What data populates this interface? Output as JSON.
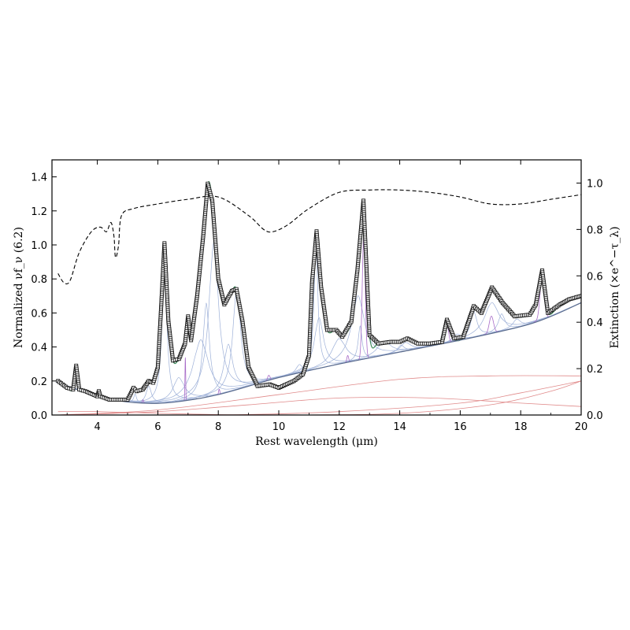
{
  "chart_data": {
    "type": "line",
    "xlabel": "Rest wavelength (μm)",
    "ylabel_left": "Normalized νf_ν (6.2)",
    "ylabel_right": "Extinction (×e^−τ_λ)",
    "xlim": [
      2.5,
      20
    ],
    "ylim_left": [
      0,
      1.5
    ],
    "ylim_right": [
      0,
      1.1
    ],
    "x_ticks": [
      4,
      6,
      8,
      10,
      12,
      14,
      16,
      18,
      20
    ],
    "x_tick_labels": [
      "4",
      "6",
      "8",
      "10",
      "12",
      "14",
      "16",
      "18",
      "20"
    ],
    "y_ticks_left": [
      0.0,
      0.2,
      0.4,
      0.6,
      0.8,
      1.0,
      1.2,
      1.4
    ],
    "y_tick_labels_left": [
      "0.0",
      "0.2",
      "0.4",
      "0.6",
      "0.8",
      "1.0",
      "1.2",
      "1.4"
    ],
    "y_ticks_right": [
      0.0,
      0.2,
      0.4,
      0.6,
      0.8,
      1.0
    ],
    "y_tick_labels_right": [
      "0.0",
      "0.2",
      "0.4",
      "0.6",
      "0.8",
      "1.0"
    ],
    "grid": false,
    "series": [
      {
        "role": "observed spectrum",
        "style": "open-square-markers",
        "color": "#1a1a1a",
        "x": [
          2.7,
          3.0,
          3.2,
          3.3,
          3.4,
          3.6,
          4.0,
          4.05,
          4.1,
          4.4,
          4.7,
          5.0,
          5.2,
          5.3,
          5.5,
          5.7,
          5.85,
          6.0,
          6.1,
          6.22,
          6.35,
          6.5,
          6.7,
          6.9,
          7.0,
          7.1,
          7.3,
          7.5,
          7.65,
          7.8,
          8.0,
          8.2,
          8.45,
          8.6,
          8.8,
          9.0,
          9.3,
          9.7,
          10.0,
          10.5,
          10.8,
          11.0,
          11.1,
          11.25,
          11.4,
          11.6,
          11.9,
          12.1,
          12.4,
          12.6,
          12.8,
          13.0,
          13.3,
          13.7,
          14.0,
          14.25,
          14.6,
          15.0,
          15.4,
          15.56,
          15.8,
          16.1,
          16.45,
          16.7,
          17.05,
          17.4,
          17.8,
          18.3,
          18.5,
          18.71,
          18.9,
          19.3,
          19.6,
          20.0
        ],
        "y": [
          0.2,
          0.16,
          0.15,
          0.29,
          0.15,
          0.14,
          0.11,
          0.14,
          0.11,
          0.09,
          0.09,
          0.09,
          0.16,
          0.14,
          0.15,
          0.2,
          0.19,
          0.28,
          0.6,
          1.01,
          0.55,
          0.32,
          0.33,
          0.42,
          0.58,
          0.44,
          0.7,
          1.05,
          1.36,
          1.26,
          0.8,
          0.65,
          0.73,
          0.74,
          0.55,
          0.28,
          0.17,
          0.18,
          0.16,
          0.2,
          0.24,
          0.35,
          0.78,
          1.08,
          0.75,
          0.5,
          0.5,
          0.46,
          0.55,
          0.85,
          1.26,
          0.47,
          0.42,
          0.43,
          0.43,
          0.45,
          0.42,
          0.42,
          0.43,
          0.56,
          0.45,
          0.46,
          0.64,
          0.6,
          0.75,
          0.66,
          0.58,
          0.59,
          0.65,
          0.85,
          0.6,
          0.65,
          0.68,
          0.7
        ]
      },
      {
        "role": "total model fit",
        "style": "solid-line",
        "color": "#3d8a5a",
        "x": [
          2.7,
          3.0,
          3.2,
          3.3,
          3.4,
          3.6,
          4.0,
          4.05,
          4.1,
          4.4,
          4.7,
          5.0,
          5.2,
          5.3,
          5.5,
          5.7,
          5.85,
          6.0,
          6.1,
          6.22,
          6.35,
          6.5,
          6.7,
          6.9,
          7.0,
          7.1,
          7.3,
          7.5,
          7.65,
          7.8,
          8.0,
          8.2,
          8.45,
          8.6,
          8.8,
          9.0,
          9.3,
          9.7,
          10.0,
          10.5,
          10.8,
          11.0,
          11.1,
          11.25,
          11.4,
          11.6,
          11.9,
          12.1,
          12.4,
          12.6,
          12.8,
          13.0,
          13.3,
          13.7,
          14.0,
          14.25,
          14.6,
          15.0,
          15.4,
          15.56,
          15.8,
          16.1,
          16.45,
          16.7,
          17.05,
          17.4,
          17.8,
          18.3,
          18.5,
          18.71,
          18.9,
          19.3,
          19.6,
          20.0
        ],
        "y": [
          0.2,
          0.16,
          0.15,
          0.29,
          0.15,
          0.14,
          0.11,
          0.14,
          0.11,
          0.09,
          0.09,
          0.09,
          0.16,
          0.14,
          0.15,
          0.2,
          0.19,
          0.28,
          0.6,
          1.01,
          0.55,
          0.32,
          0.33,
          0.42,
          0.58,
          0.44,
          0.7,
          1.05,
          1.36,
          1.26,
          0.8,
          0.65,
          0.73,
          0.74,
          0.55,
          0.28,
          0.17,
          0.18,
          0.16,
          0.2,
          0.24,
          0.35,
          0.78,
          1.08,
          0.75,
          0.5,
          0.5,
          0.46,
          0.55,
          0.85,
          1.26,
          0.47,
          0.42,
          0.43,
          0.43,
          0.45,
          0.42,
          0.42,
          0.43,
          0.56,
          0.45,
          0.46,
          0.64,
          0.6,
          0.75,
          0.66,
          0.58,
          0.59,
          0.65,
          0.85,
          0.6,
          0.65,
          0.68,
          0.7
        ]
      },
      {
        "role": "continuum",
        "style": "solid-line",
        "color": "#5a6b8c",
        "x": [
          2.7,
          3.5,
          4.5,
          5.5,
          6.5,
          8.0,
          10.0,
          12.0,
          14.0,
          16.0,
          18.0,
          19.0,
          20.0
        ],
        "y": [
          0.19,
          0.14,
          0.09,
          0.07,
          0.075,
          0.12,
          0.22,
          0.3,
          0.37,
          0.44,
          0.52,
          0.58,
          0.66
        ]
      },
      {
        "role": "extinction",
        "axis": "right",
        "style": "dashed-line",
        "color": "#000000",
        "x": [
          2.7,
          2.9,
          3.1,
          3.4,
          3.8,
          4.1,
          4.3,
          4.45,
          4.55,
          4.6,
          4.7,
          4.8,
          5.2,
          6.0,
          7.0,
          8.0,
          9.0,
          9.5,
          9.8,
          10.3,
          11.0,
          12.0,
          13.0,
          14.0,
          15.0,
          16.0,
          17.0,
          18.0,
          19.0,
          20.0
        ],
        "y": [
          0.61,
          0.57,
          0.58,
          0.7,
          0.79,
          0.81,
          0.79,
          0.83,
          0.77,
          0.68,
          0.73,
          0.86,
          0.89,
          0.91,
          0.93,
          0.94,
          0.86,
          0.8,
          0.79,
          0.82,
          0.89,
          0.96,
          0.97,
          0.97,
          0.96,
          0.94,
          0.91,
          0.91,
          0.93,
          0.95
        ]
      }
    ],
    "pah_features": {
      "color": "#9db0d8",
      "profile": "drude",
      "components": [
        {
          "center": 3.3,
          "height": 0.13,
          "width": 0.04
        },
        {
          "center": 5.25,
          "height": 0.05,
          "width": 0.1
        },
        {
          "center": 5.7,
          "height": 0.1,
          "width": 0.2
        },
        {
          "center": 6.22,
          "height": 0.88,
          "width": 0.18
        },
        {
          "center": 6.69,
          "height": 0.14,
          "width": 0.45
        },
        {
          "center": 7.42,
          "height": 0.34,
          "width": 0.6
        },
        {
          "center": 7.6,
          "height": 0.55,
          "width": 0.25
        },
        {
          "center": 7.85,
          "height": 0.9,
          "width": 0.38
        },
        {
          "center": 8.33,
          "height": 0.28,
          "width": 0.35
        },
        {
          "center": 8.61,
          "height": 0.6,
          "width": 0.3
        },
        {
          "center": 10.68,
          "height": 0.05,
          "width": 0.25
        },
        {
          "center": 11.23,
          "height": 0.75,
          "width": 0.15
        },
        {
          "center": 11.33,
          "height": 0.3,
          "width": 0.35
        },
        {
          "center": 11.99,
          "height": 0.15,
          "width": 0.55
        },
        {
          "center": 12.62,
          "height": 0.38,
          "width": 0.5
        },
        {
          "center": 12.69,
          "height": 0.2,
          "width": 0.15
        },
        {
          "center": 13.48,
          "height": 0.08,
          "width": 0.55
        },
        {
          "center": 14.04,
          "height": 0.04,
          "width": 0.25
        },
        {
          "center": 14.19,
          "height": 0.05,
          "width": 0.4
        },
        {
          "center": 15.9,
          "height": 0.04,
          "width": 0.3
        },
        {
          "center": 16.45,
          "height": 0.15,
          "width": 0.25
        },
        {
          "center": 17.04,
          "height": 0.18,
          "width": 0.55
        },
        {
          "center": 17.37,
          "height": 0.1,
          "width": 0.25
        },
        {
          "center": 17.87,
          "height": 0.05,
          "width": 0.3
        }
      ]
    },
    "emission_lines": {
      "color": "#a86cc8",
      "profile": "gaussian",
      "lines": [
        {
          "center": 5.51,
          "height": 0.02,
          "width": 0.02
        },
        {
          "center": 6.91,
          "height": 0.25,
          "width": 0.012
        },
        {
          "center": 8.03,
          "height": 0.03,
          "width": 0.02
        },
        {
          "center": 9.67,
          "height": 0.03,
          "width": 0.04
        },
        {
          "center": 12.28,
          "height": 0.04,
          "width": 0.03
        },
        {
          "center": 12.81,
          "height": 0.72,
          "width": 0.05
        },
        {
          "center": 15.56,
          "height": 0.12,
          "width": 0.05
        },
        {
          "center": 17.03,
          "height": 0.1,
          "width": 0.07
        },
        {
          "center": 18.71,
          "height": 0.26,
          "width": 0.07
        }
      ]
    },
    "dust_continua": {
      "color": "#e08a8a",
      "curves": [
        {
          "x": [
            2.7,
            6.0,
            10.0,
            14.0,
            17.0,
            20.0
          ],
          "y": [
            0.0,
            0.03,
            0.12,
            0.21,
            0.23,
            0.23
          ]
        },
        {
          "x": [
            2.7,
            6.0,
            9.0,
            12.0,
            15.0,
            18.0,
            20.0
          ],
          "y": [
            0.0,
            0.02,
            0.06,
            0.1,
            0.1,
            0.07,
            0.05
          ]
        },
        {
          "x": [
            2.7,
            8.0,
            12.0,
            16.0,
            18.0,
            20.0
          ],
          "y": [
            0.0,
            0.0,
            0.02,
            0.07,
            0.13,
            0.2
          ]
        },
        {
          "x": [
            2.7,
            10.0,
            14.0,
            17.0,
            19.0,
            20.0
          ],
          "y": [
            0.0,
            0.0,
            0.01,
            0.06,
            0.14,
            0.2
          ]
        },
        {
          "x": [
            2.7,
            4.0,
            6.0,
            9.0,
            13.0,
            20.0
          ],
          "y": [
            0.02,
            0.02,
            0.01,
            0.0,
            0.0,
            0.0
          ]
        }
      ]
    }
  }
}
